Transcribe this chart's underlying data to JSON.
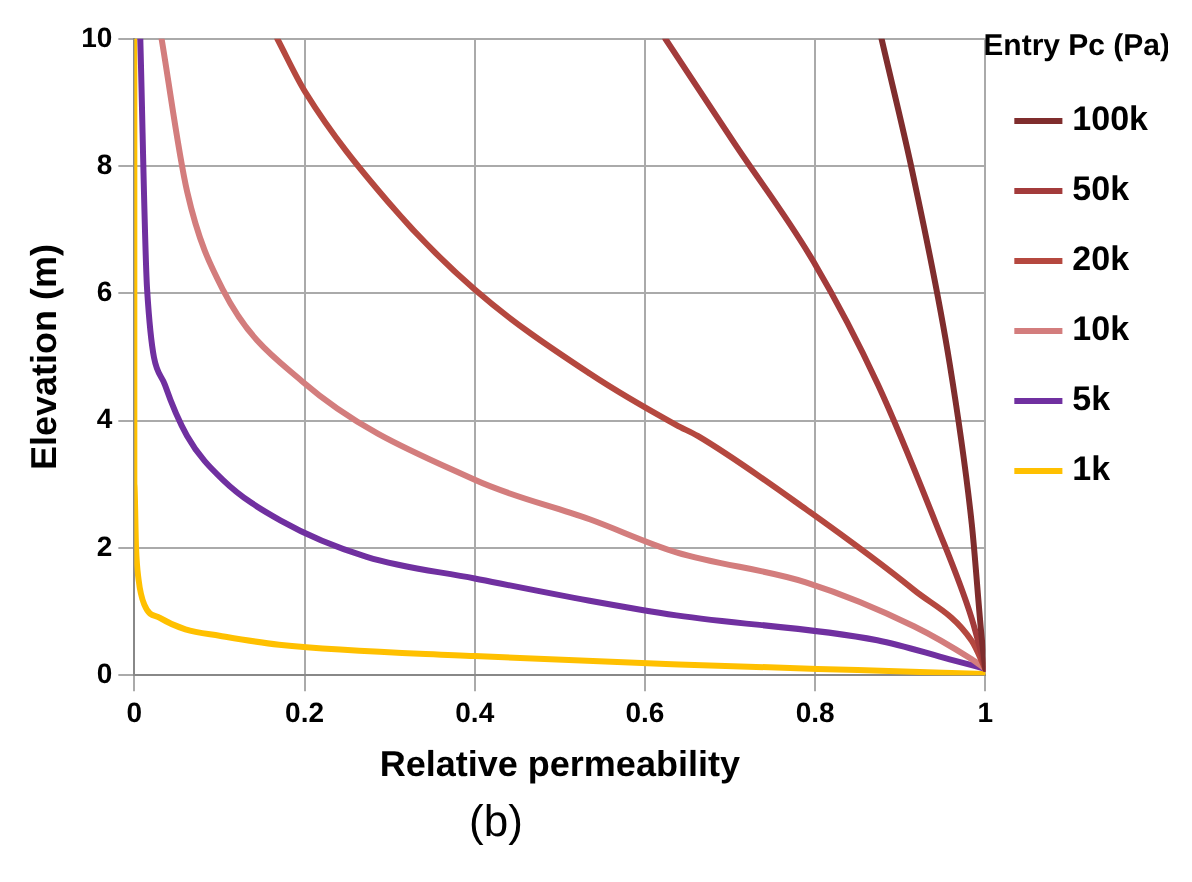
{
  "chart_data": {
    "type": "line",
    "xlabel": "Relative permeability",
    "ylabel": "Elevation (m)",
    "legend_title": "Entry Pc (Pa)",
    "annotations": [
      "(b)"
    ],
    "xlim": [
      0,
      1
    ],
    "ylim": [
      0,
      10
    ],
    "xticks": [
      0,
      0.2,
      0.4,
      0.6,
      0.8,
      1
    ],
    "yticks": [
      0,
      2,
      4,
      6,
      8,
      10
    ],
    "grid": true,
    "legend": "right",
    "marker": "none",
    "line_style": "solid",
    "series": [
      {
        "name": "100k",
        "color": "#7f2d2d",
        "x": [
          0.878,
          0.916,
          0.958,
          0.984,
          0.996,
          1
        ],
        "values": [
          10,
          7.8,
          4.9,
          2.38,
          0.55,
          0.1
        ]
      },
      {
        "name": "50k",
        "color": "#a33b3b",
        "x": [
          0.624,
          0.705,
          0.798,
          0.874,
          0.942,
          0.984,
          1
        ],
        "values": [
          10,
          8.36,
          6.5,
          4.56,
          2.38,
          0.89,
          0.1
        ]
      },
      {
        "name": "20k",
        "color": "#b5483f",
        "x": [
          0.168,
          0.201,
          0.298,
          0.4,
          0.535,
          0.637,
          0.662,
          0.789,
          0.916,
          0.984,
          1
        ],
        "values": [
          10,
          9.16,
          7.44,
          6.06,
          4.74,
          3.93,
          3.76,
          2.61,
          1.34,
          0.54,
          0.1
        ]
      },
      {
        "name": "10k",
        "color": "#d37d7d",
        "x": [
          0.032,
          0.062,
          0.104,
          0.197,
          0.4,
          0.535,
          0.637,
          0.789,
          0.916,
          0.984,
          1
        ],
        "values": [
          10,
          7.6,
          6.06,
          4.62,
          3.07,
          2.45,
          1.93,
          1.46,
          0.77,
          0.25,
          0.1
        ]
      },
      {
        "name": "5k",
        "color": "#7030a0",
        "x": [
          0.007,
          0.015,
          0.036,
          0.062,
          0.104,
          0.172,
          0.273,
          0.4,
          0.535,
          0.637,
          0.873,
          0.958,
          1
        ],
        "values": [
          10,
          6.06,
          4.56,
          3.76,
          3.07,
          2.43,
          1.86,
          1.52,
          1.17,
          0.94,
          0.55,
          0.25,
          0.1
        ]
      },
      {
        "name": "1k",
        "color": "#ffc000",
        "x": [
          0,
          0,
          0.002,
          0.005,
          0.012,
          0.03,
          0.06,
          0.1,
          0.17,
          0.4,
          0.64,
          0.85,
          1
        ],
        "values": [
          10,
          3,
          2,
          1.5,
          1.1,
          0.9,
          0.72,
          0.62,
          0.48,
          0.3,
          0.17,
          0.08,
          0.02
        ]
      }
    ]
  }
}
